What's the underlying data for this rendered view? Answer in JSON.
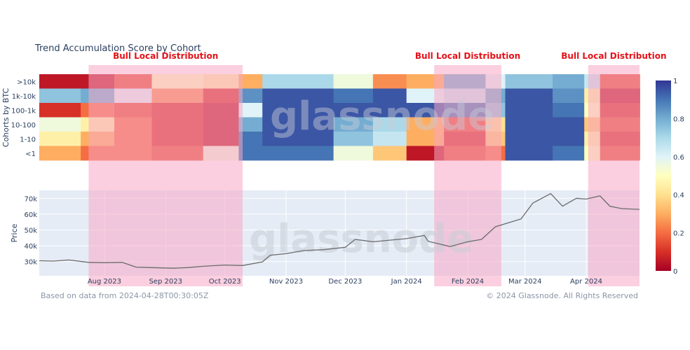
{
  "chart_data": {
    "title": "Trend Accumulation Score by Cohort",
    "heatmap": {
      "type": "heatmap",
      "ylabel": "Cohorts by BTC",
      "rows": [
        ">10k",
        "1k-10k",
        "100-1k",
        "10-100",
        "1-10",
        "<1"
      ],
      "colorbar": {
        "min": 0,
        "max": 1,
        "ticks": [
          "0",
          "0.2",
          "0.4",
          "0.6",
          "0.8",
          "1"
        ]
      },
      "x_range": [
        "2023-06-29",
        "2024-04-28"
      ],
      "segments": [
        {
          "start": "2023-06-29",
          "end": "2023-07-20",
          "scores": [
            0.05,
            0.75,
            0.1,
            0.55,
            0.45,
            0.3
          ]
        },
        {
          "start": "2023-07-20",
          "end": "2023-08-06",
          "scores": [
            0.05,
            0.8,
            0.2,
            0.45,
            0.3,
            0.2
          ]
        },
        {
          "start": "2023-08-06",
          "end": "2023-08-25",
          "scores": [
            0.15,
            0.6,
            0.15,
            0.2,
            0.2,
            0.2
          ]
        },
        {
          "start": "2023-08-25",
          "end": "2023-09-20",
          "scores": [
            0.5,
            0.25,
            0.1,
            0.1,
            0.1,
            0.15
          ]
        },
        {
          "start": "2023-09-20",
          "end": "2023-10-08",
          "scores": [
            0.45,
            0.1,
            0.05,
            0.05,
            0.05,
            0.55
          ]
        },
        {
          "start": "2023-10-08",
          "end": "2023-10-20",
          "scores": [
            0.3,
            0.85,
            0.6,
            0.8,
            0.9,
            0.9
          ]
        },
        {
          "start": "2023-10-20",
          "end": "2023-11-25",
          "scores": [
            0.7,
            0.95,
            0.95,
            0.95,
            0.95,
            0.9
          ]
        },
        {
          "start": "2023-11-25",
          "end": "2023-12-15",
          "scores": [
            0.55,
            0.9,
            0.95,
            0.8,
            0.75,
            0.55
          ]
        },
        {
          "start": "2023-12-15",
          "end": "2024-01-01",
          "scores": [
            0.25,
            0.95,
            0.95,
            0.7,
            0.65,
            0.35
          ]
        },
        {
          "start": "2024-01-01",
          "end": "2024-01-20",
          "scores": [
            0.3,
            0.6,
            0.95,
            0.3,
            0.3,
            0.05
          ]
        },
        {
          "start": "2024-01-20",
          "end": "2024-02-10",
          "scores": [
            0.8,
            0.65,
            0.9,
            0.15,
            0.1,
            0.15
          ]
        },
        {
          "start": "2024-02-10",
          "end": "2024-02-20",
          "scores": [
            0.6,
            0.8,
            0.75,
            0.4,
            0.35,
            0.2
          ]
        },
        {
          "start": "2024-02-20",
          "end": "2024-03-15",
          "scores": [
            0.75,
            0.95,
            0.95,
            0.95,
            0.95,
            0.95
          ]
        },
        {
          "start": "2024-03-15",
          "end": "2024-03-31",
          "scores": [
            0.8,
            0.85,
            0.9,
            0.95,
            0.95,
            0.9
          ]
        },
        {
          "start": "2024-03-31",
          "end": "2024-04-08",
          "scores": [
            0.65,
            0.45,
            0.5,
            0.35,
            0.45,
            0.5
          ]
        },
        {
          "start": "2024-04-08",
          "end": "2024-04-28",
          "scores": [
            0.15,
            0.05,
            0.1,
            0.15,
            0.1,
            0.15
          ]
        }
      ]
    },
    "price": {
      "type": "line",
      "ylabel": "Price",
      "ylim": [
        21000,
        75000
      ],
      "yticks": [
        30000,
        40000,
        50000,
        60000,
        70000
      ],
      "ytick_labels": [
        "30k",
        "40k",
        "50k",
        "60k",
        "70k"
      ],
      "xticks": [
        "2023-08-01",
        "2023-09-01",
        "2023-10-01",
        "2023-11-01",
        "2023-12-01",
        "2024-01-01",
        "2024-02-01",
        "2024-03-01",
        "2024-04-01"
      ],
      "xtick_labels": [
        "Aug 2023",
        "Sep 2023",
        "Oct 2023",
        "Nov 2023",
        "Dec 2023",
        "Jan 2024",
        "Feb 2024",
        "Mar 2024",
        "Apr 2024"
      ],
      "x": [
        "2023-06-29",
        "2023-07-06",
        "2023-07-14",
        "2023-07-24",
        "2023-08-01",
        "2023-08-10",
        "2023-08-17",
        "2023-08-25",
        "2023-09-05",
        "2023-09-12",
        "2023-09-20",
        "2023-10-01",
        "2023-10-10",
        "2023-10-20",
        "2023-10-24",
        "2023-11-01",
        "2023-11-10",
        "2023-11-20",
        "2023-12-01",
        "2023-12-06",
        "2023-12-15",
        "2024-01-01",
        "2024-01-10",
        "2024-01-12",
        "2024-01-23",
        "2024-02-01",
        "2024-02-08",
        "2024-02-15",
        "2024-02-28",
        "2024-03-05",
        "2024-03-14",
        "2024-03-20",
        "2024-03-27",
        "2024-04-01",
        "2024-04-08",
        "2024-04-13",
        "2024-04-19",
        "2024-04-28"
      ],
      "values": [
        30500,
        30300,
        31000,
        29500,
        29300,
        29500,
        26500,
        26200,
        25800,
        26200,
        27000,
        27800,
        27500,
        29800,
        34000,
        35000,
        37000,
        37500,
        39000,
        44000,
        42500,
        44500,
        46500,
        42800,
        39500,
        42500,
        44000,
        52000,
        57000,
        67000,
        73000,
        65000,
        70000,
        69500,
        71500,
        65000,
        63500,
        63000
      ],
      "line_color": "#6b6b6b"
    },
    "highlights": [
      {
        "label": "Bull Local Distribution",
        "start": "2023-07-24",
        "end": "2023-10-10"
      },
      {
        "label": "Bull Local Distribution",
        "start": "2024-01-15",
        "end": "2024-02-18"
      },
      {
        "label": "Bull Local Distribution",
        "start": "2024-04-02",
        "end": "2024-04-28"
      }
    ],
    "highlight_color": "#f7a8c4",
    "label_color": "#e3131a",
    "watermark": "glassnode",
    "footnote_left": "Based on data from 2024-04-28T00:30:05Z",
    "footnote_right": "© 2024 Glassnode. All Rights Reserved"
  }
}
